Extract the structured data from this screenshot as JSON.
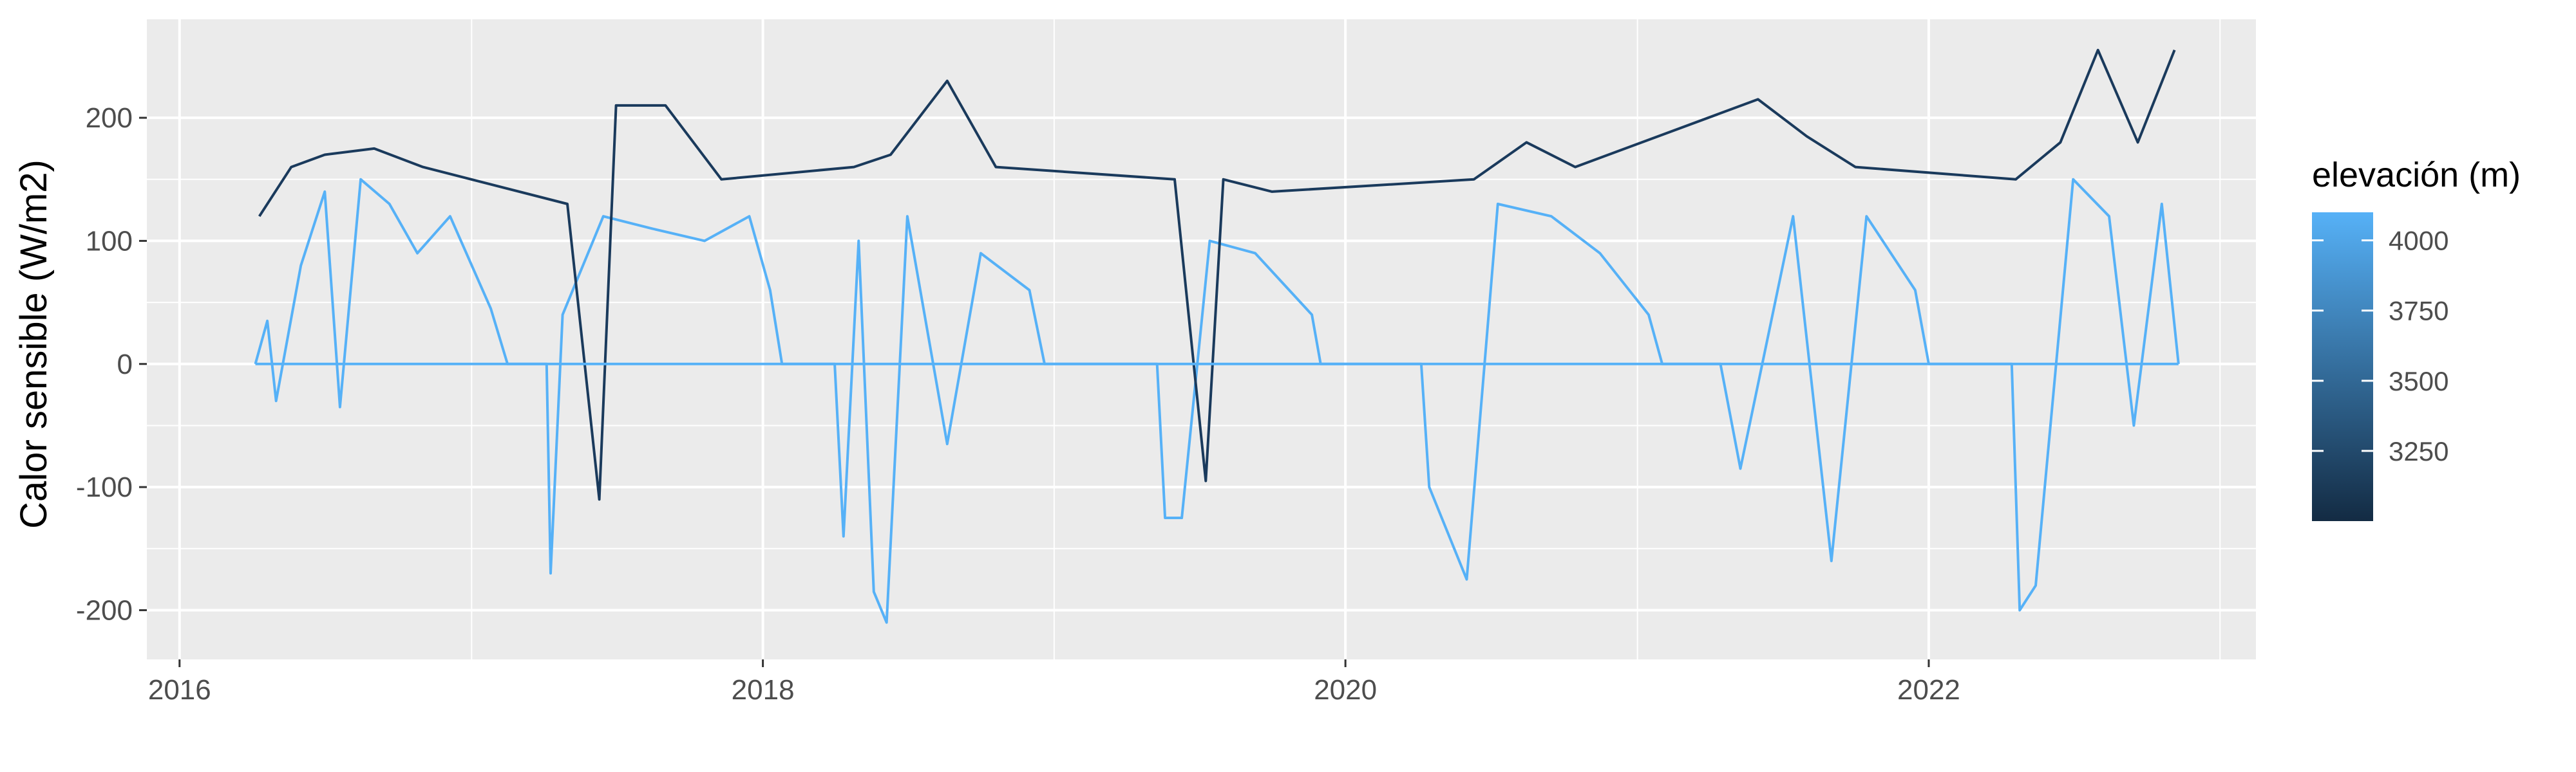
{
  "chart_data": {
    "type": "line",
    "title": "",
    "xlabel": "",
    "ylabel": "Calor sensible (W/m2)",
    "xlim": [
      "2015-11-21",
      "2023-02-15"
    ],
    "ylim": [
      -240,
      280
    ],
    "x_ticks": [
      "2016",
      "2018",
      "2020",
      "2022"
    ],
    "y_ticks": [
      -200,
      -100,
      0,
      100,
      200
    ],
    "grid": true,
    "panel_background": "#ebebeb",
    "legend": {
      "title": "elevación (m)",
      "position": "right",
      "type": "colorbar",
      "low_color": "#132b43",
      "high_color": "#56b1f7",
      "range": [
        3000,
        4100
      ],
      "breaks": [
        4000,
        3750,
        3500,
        3250
      ]
    },
    "series": [
      {
        "elevation": 4050,
        "color": "#56b1f7",
        "points": [
          [
            "2016-04-05",
            0
          ],
          [
            "2016-04-20",
            35
          ],
          [
            "2016-05-01",
            -30
          ],
          [
            "2016-06-01",
            80
          ],
          [
            "2016-07-01",
            140
          ],
          [
            "2016-07-20",
            -35
          ],
          [
            "2016-08-15",
            150
          ],
          [
            "2016-09-20",
            130
          ],
          [
            "2016-10-25",
            90
          ],
          [
            "2016-12-05",
            120
          ],
          [
            "2017-01-25",
            45
          ],
          [
            "2017-02-15",
            0
          ],
          [
            "2017-04-05",
            0
          ],
          [
            "2017-04-10",
            -170
          ],
          [
            "2017-04-25",
            40
          ],
          [
            "2017-06-15",
            120
          ],
          [
            "2017-08-15",
            110
          ],
          [
            "2017-10-20",
            100
          ],
          [
            "2017-12-15",
            120
          ],
          [
            "2018-01-10",
            60
          ],
          [
            "2018-01-25",
            0
          ],
          [
            "2018-04-01",
            0
          ],
          [
            "2018-04-12",
            -140
          ],
          [
            "2018-05-01",
            100
          ],
          [
            "2018-05-20",
            -185
          ],
          [
            "2018-06-05",
            -210
          ],
          [
            "2018-07-01",
            120
          ],
          [
            "2018-08-20",
            -65
          ],
          [
            "2018-10-01",
            90
          ],
          [
            "2018-12-01",
            60
          ],
          [
            "2018-12-20",
            0
          ],
          [
            "2019-05-10",
            0
          ],
          [
            "2019-05-20",
            -125
          ],
          [
            "2019-06-10",
            -125
          ],
          [
            "2019-07-15",
            100
          ],
          [
            "2019-09-10",
            90
          ],
          [
            "2019-11-20",
            40
          ],
          [
            "2019-12-01",
            0
          ],
          [
            "2020-04-05",
            0
          ],
          [
            "2020-04-15",
            -100
          ],
          [
            "2020-06-01",
            -175
          ],
          [
            "2020-07-10",
            130
          ],
          [
            "2020-09-15",
            120
          ],
          [
            "2020-11-15",
            90
          ],
          [
            "2021-01-15",
            40
          ],
          [
            "2021-02-01",
            0
          ],
          [
            "2021-04-15",
            0
          ],
          [
            "2021-05-10",
            -85
          ],
          [
            "2021-07-15",
            120
          ],
          [
            "2021-09-01",
            -160
          ],
          [
            "2021-10-15",
            120
          ],
          [
            "2021-12-15",
            60
          ],
          [
            "2022-01-01",
            0
          ],
          [
            "2022-04-15",
            0
          ],
          [
            "2022-04-25",
            -200
          ],
          [
            "2022-05-15",
            -180
          ],
          [
            "2022-07-01",
            150
          ],
          [
            "2022-08-15",
            120
          ],
          [
            "2022-09-15",
            -50
          ],
          [
            "2022-10-20",
            130
          ],
          [
            "2022-11-10",
            0
          ]
        ]
      },
      {
        "elevation": 3100,
        "color": "#1a3a5c",
        "points": [
          [
            "2016-04-10",
            120
          ],
          [
            "2016-05-20",
            160
          ],
          [
            "2016-07-01",
            170
          ],
          [
            "2016-09-01",
            175
          ],
          [
            "2016-11-01",
            160
          ],
          [
            "2017-05-01",
            130
          ],
          [
            "2017-06-10",
            -110
          ],
          [
            "2017-07-01",
            210
          ],
          [
            "2017-09-01",
            210
          ],
          [
            "2017-11-10",
            150
          ],
          [
            "2018-04-25",
            160
          ],
          [
            "2018-06-10",
            170
          ],
          [
            "2018-08-20",
            230
          ],
          [
            "2018-10-20",
            160
          ],
          [
            "2019-06-01",
            150
          ],
          [
            "2019-07-10",
            -95
          ],
          [
            "2019-08-01",
            150
          ],
          [
            "2019-10-01",
            140
          ],
          [
            "2020-06-10",
            150
          ],
          [
            "2020-08-15",
            180
          ],
          [
            "2020-10-15",
            160
          ],
          [
            "2021-06-01",
            215
          ],
          [
            "2021-08-01",
            185
          ],
          [
            "2021-10-01",
            160
          ],
          [
            "2022-04-20",
            150
          ],
          [
            "2022-06-15",
            180
          ],
          [
            "2022-08-01",
            255
          ],
          [
            "2022-09-20",
            180
          ],
          [
            "2022-11-05",
            255
          ]
        ]
      }
    ]
  }
}
